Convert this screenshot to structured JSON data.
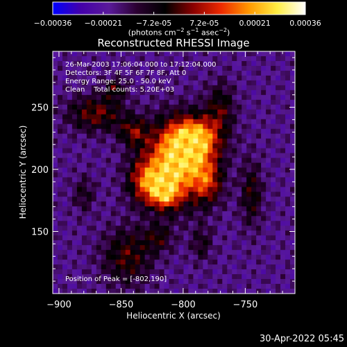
{
  "chart_data": {
    "type": "heatmap",
    "title": "Reconstructed RHESSI Image",
    "xlabel": "Heliocentric X (arcsec)",
    "ylabel": "Heliocentric Y (arcsec)",
    "xlim": [
      -905,
      -710
    ],
    "ylim": [
      100,
      295
    ],
    "x_ticks": [
      -900,
      -850,
      -800,
      -750
    ],
    "y_ticks": [
      150,
      200,
      250
    ],
    "annotations": [
      "26-Mar-2003 17:06:04.000 to 17:12:04.000",
      "Detectors: 3F 4F 5F 6F 7F 8F, Att 0",
      "Energy Range: 25.0 - 50.0 keV",
      "Clean    Total counts: 5.20E+03"
    ],
    "peak_label": "Position of Peak = [-802,190]",
    "peak_position": [
      -802,
      190
    ],
    "colorbar": {
      "ticks": [
        "-0.00036",
        "-0.00021",
        "-7.2e-05",
        "7.2e-05",
        "0.00021",
        "0.00036"
      ],
      "range": [
        -0.00036,
        0.00036
      ],
      "unit_label": "(photons cm^-2 s^-1 asec^-2)",
      "colormap": [
        "#0000ff",
        "#4400aa",
        "#5a1a9a",
        "#2a0030",
        "#000000",
        "#8a0000",
        "#ee2a00",
        "#ff9900",
        "#ffee44",
        "#ffffff"
      ]
    },
    "sources": [
      {
        "x": -805,
        "y": 205,
        "sx": 18,
        "sy": 22,
        "a": 1.0
      },
      {
        "x": -790,
        "y": 225,
        "sx": 14,
        "sy": 12,
        "a": 0.75
      },
      {
        "x": -830,
        "y": 190,
        "sx": 10,
        "sy": 12,
        "a": 0.55
      },
      {
        "x": -815,
        "y": 180,
        "sx": 8,
        "sy": 8,
        "a": 0.6
      },
      {
        "x": -780,
        "y": 190,
        "sx": 8,
        "sy": 12,
        "a": 0.45
      },
      {
        "x": -870,
        "y": 245,
        "sx": 16,
        "sy": 10,
        "a": 0.45
      },
      {
        "x": -855,
        "y": 265,
        "sx": 6,
        "sy": 6,
        "a": 0.35
      },
      {
        "x": -845,
        "y": 130,
        "sx": 14,
        "sy": 16,
        "a": 0.4
      },
      {
        "x": -820,
        "y": 145,
        "sx": 8,
        "sy": 8,
        "a": 0.3
      },
      {
        "x": -745,
        "y": 180,
        "sx": 6,
        "sy": 18,
        "a": 0.35
      },
      {
        "x": -770,
        "y": 250,
        "sx": 8,
        "sy": 14,
        "a": 0.35
      },
      {
        "x": -880,
        "y": 180,
        "sx": 6,
        "sy": 10,
        "a": 0.25
      },
      {
        "x": -785,
        "y": 140,
        "sx": 6,
        "sy": 10,
        "a": 0.25
      },
      {
        "x": -840,
        "y": 230,
        "sx": 8,
        "sy": 8,
        "a": 0.4
      }
    ]
  },
  "footer": {
    "timestamp": "30-Apr-2022 05:45"
  }
}
